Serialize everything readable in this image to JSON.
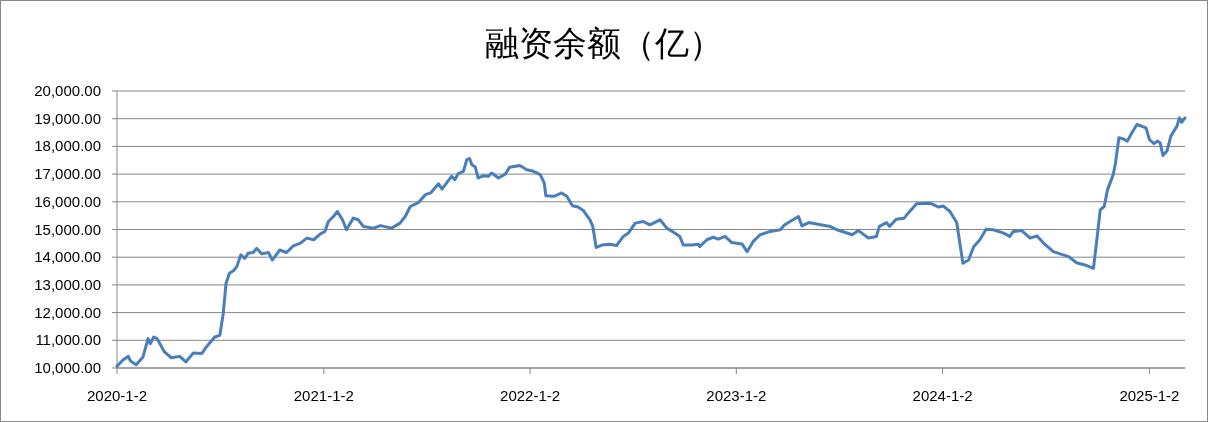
{
  "chart_data": {
    "type": "line",
    "title": "融资余额（亿）",
    "color": "#4a7ebb",
    "grid": "y",
    "xlim": [
      "2020-01-02",
      "2025-03-06"
    ],
    "ylim": [
      10000,
      20000
    ],
    "xticks": [
      {
        "value": "2020-01-02",
        "label": "2020-1-2"
      },
      {
        "value": "2021-01-02",
        "label": "2021-1-2"
      },
      {
        "value": "2022-01-02",
        "label": "2022-1-2"
      },
      {
        "value": "2023-01-02",
        "label": "2023-1-2"
      },
      {
        "value": "2024-01-02",
        "label": "2024-1-2"
      },
      {
        "value": "2025-01-02",
        "label": "2025-1-2"
      }
    ],
    "yticks": [
      {
        "value": 10000,
        "label": "10,000.00"
      },
      {
        "value": 11000,
        "label": "11,000.00"
      },
      {
        "value": 12000,
        "label": "12,000.00"
      },
      {
        "value": 13000,
        "label": "13,000.00"
      },
      {
        "value": 14000,
        "label": "14,000.00"
      },
      {
        "value": 15000,
        "label": "15,000.00"
      },
      {
        "value": 16000,
        "label": "16,000.00"
      },
      {
        "value": 17000,
        "label": "17,000.00"
      },
      {
        "value": 18000,
        "label": "18,000.00"
      },
      {
        "value": 19000,
        "label": "19,000.00"
      },
      {
        "value": 20000,
        "label": "20,000.00"
      }
    ],
    "x": [
      "2020-01-02",
      "2020-01-13",
      "2020-01-22",
      "2020-01-26",
      "2020-02-05",
      "2020-02-17",
      "2020-02-26",
      "2020-03-01",
      "2020-03-07",
      "2020-03-13",
      "2020-03-26",
      "2020-04-07",
      "2020-04-22",
      "2020-05-03",
      "2020-05-16",
      "2020-05-31",
      "2020-06-08",
      "2020-06-23",
      "2020-07-02",
      "2020-07-08",
      "2020-07-13",
      "2020-07-19",
      "2020-07-26",
      "2020-08-01",
      "2020-08-08",
      "2020-08-15",
      "2020-08-21",
      "2020-08-30",
      "2020-09-05",
      "2020-09-14",
      "2020-09-26",
      "2020-10-03",
      "2020-10-16",
      "2020-10-28",
      "2020-11-09",
      "2020-11-21",
      "2020-12-03",
      "2020-12-15",
      "2020-12-27",
      "2021-01-04",
      "2021-01-10",
      "2021-01-19",
      "2021-01-26",
      "2021-02-04",
      "2021-02-11",
      "2021-02-23",
      "2021-03-04",
      "2021-03-13",
      "2021-03-31",
      "2021-04-12",
      "2021-05-02",
      "2021-05-17",
      "2021-05-26",
      "2021-06-04",
      "2021-06-19",
      "2021-07-01",
      "2021-07-10",
      "2021-07-16",
      "2021-07-24",
      "2021-07-30",
      "2021-08-16",
      "2021-08-22",
      "2021-08-28",
      "2021-09-06",
      "2021-09-12",
      "2021-09-17",
      "2021-09-21",
      "2021-09-27",
      "2021-10-02",
      "2021-10-11",
      "2021-10-20",
      "2021-10-26",
      "2021-11-07",
      "2021-11-19",
      "2021-11-27",
      "2021-12-15",
      "2021-12-27",
      "2022-01-08",
      "2022-01-20",
      "2022-01-27",
      "2022-01-30",
      "2022-02-13",
      "2022-02-27",
      "2022-03-08",
      "2022-03-18",
      "2022-03-28",
      "2022-04-06",
      "2022-04-18",
      "2022-04-23",
      "2022-04-29",
      "2022-05-09",
      "2022-05-23",
      "2022-06-04",
      "2022-06-16",
      "2022-06-25",
      "2022-07-07",
      "2022-07-21",
      "2022-08-02",
      "2022-08-20",
      "2022-09-01",
      "2022-09-15",
      "2022-09-24",
      "2022-09-30",
      "2022-10-15",
      "2022-10-27",
      "2022-10-29",
      "2022-11-11",
      "2022-11-22",
      "2022-12-01",
      "2022-12-13",
      "2022-12-25",
      "2023-01-12",
      "2023-01-21",
      "2023-02-01",
      "2023-02-13",
      "2023-03-03",
      "2023-03-21",
      "2023-03-27",
      "2023-04-07",
      "2023-04-22",
      "2023-04-28",
      "2023-05-10",
      "2023-05-31",
      "2023-06-17",
      "2023-06-29",
      "2023-07-26",
      "2023-08-06",
      "2023-08-24",
      "2023-09-07",
      "2023-09-12",
      "2023-09-25",
      "2023-09-30",
      "2023-10-12",
      "2023-10-26",
      "2023-11-02",
      "2023-11-17",
      "2023-12-11",
      "2023-12-26",
      "2024-01-03",
      "2024-01-15",
      "2024-01-27",
      "2024-02-07",
      "2024-02-17",
      "2024-02-26",
      "2024-03-08",
      "2024-03-19",
      "2024-04-01",
      "2024-04-19",
      "2024-04-30",
      "2024-05-06",
      "2024-05-21",
      "2024-06-05",
      "2024-06-17",
      "2024-06-29",
      "2024-07-16",
      "2024-07-28",
      "2024-08-12",
      "2024-08-26",
      "2024-09-10",
      "2024-09-25",
      "2024-10-01",
      "2024-10-07",
      "2024-10-14",
      "2024-10-20",
      "2024-10-30",
      "2024-11-03",
      "2024-11-09",
      "2024-11-17",
      "2024-11-24",
      "2024-12-02",
      "2024-12-11",
      "2024-12-27",
      "2025-01-02",
      "2025-01-10",
      "2025-01-16",
      "2025-01-21",
      "2025-01-26",
      "2025-02-02",
      "2025-02-09",
      "2025-02-20",
      "2025-02-24",
      "2025-02-28",
      "2025-03-06"
    ],
    "values": [
      10060,
      10300,
      10420,
      10250,
      10120,
      10400,
      11060,
      10880,
      11120,
      11060,
      10580,
      10370,
      10420,
      10220,
      10540,
      10520,
      10760,
      11120,
      11180,
      11970,
      13060,
      13420,
      13510,
      13660,
      14080,
      13960,
      14140,
      14170,
      14320,
      14120,
      14170,
      13900,
      14260,
      14170,
      14410,
      14500,
      14690,
      14630,
      14840,
      14930,
      15290,
      15470,
      15650,
      15350,
      14990,
      15410,
      15350,
      15110,
      15050,
      15140,
      15050,
      15230,
      15470,
      15830,
      15980,
      16260,
      16320,
      16460,
      16650,
      16460,
      16920,
      16800,
      17020,
      17100,
      17520,
      17560,
      17340,
      17260,
      16860,
      16940,
      16920,
      17040,
      16860,
      17000,
      17250,
      17310,
      17160,
      17100,
      16980,
      16680,
      16220,
      16200,
      16320,
      16200,
      15860,
      15810,
      15690,
      15350,
      15110,
      14350,
      14440,
      14470,
      14420,
      14750,
      14870,
      15230,
      15290,
      15170,
      15350,
      15050,
      14870,
      14750,
      14440,
      14440,
      14470,
      14380,
      14630,
      14720,
      14650,
      14750,
      14530,
      14480,
      14200,
      14570,
      14810,
      14930,
      14990,
      15140,
      15290,
      15470,
      15130,
      15250,
      15170,
      15110,
      14990,
      14810,
      14960,
      14690,
      14750,
      15110,
      15250,
      15110,
      15370,
      15410,
      15590,
      15930,
      15950,
      15810,
      15850,
      15650,
      15250,
      13780,
      13900,
      14380,
      14630,
      15010,
      14990,
      14870,
      14750,
      14930,
      14960,
      14690,
      14770,
      14500,
      14200,
      14120,
      14020,
      13800,
      13720,
      13600,
      14630,
      15710,
      15830,
      16440,
      16980,
      17400,
      18310,
      18270,
      18190,
      18490,
      18790,
      18670,
      18250,
      18100,
      18190,
      18130,
      17670,
      17830,
      18370,
      18740,
      19030,
      18870,
      19030
    ]
  }
}
